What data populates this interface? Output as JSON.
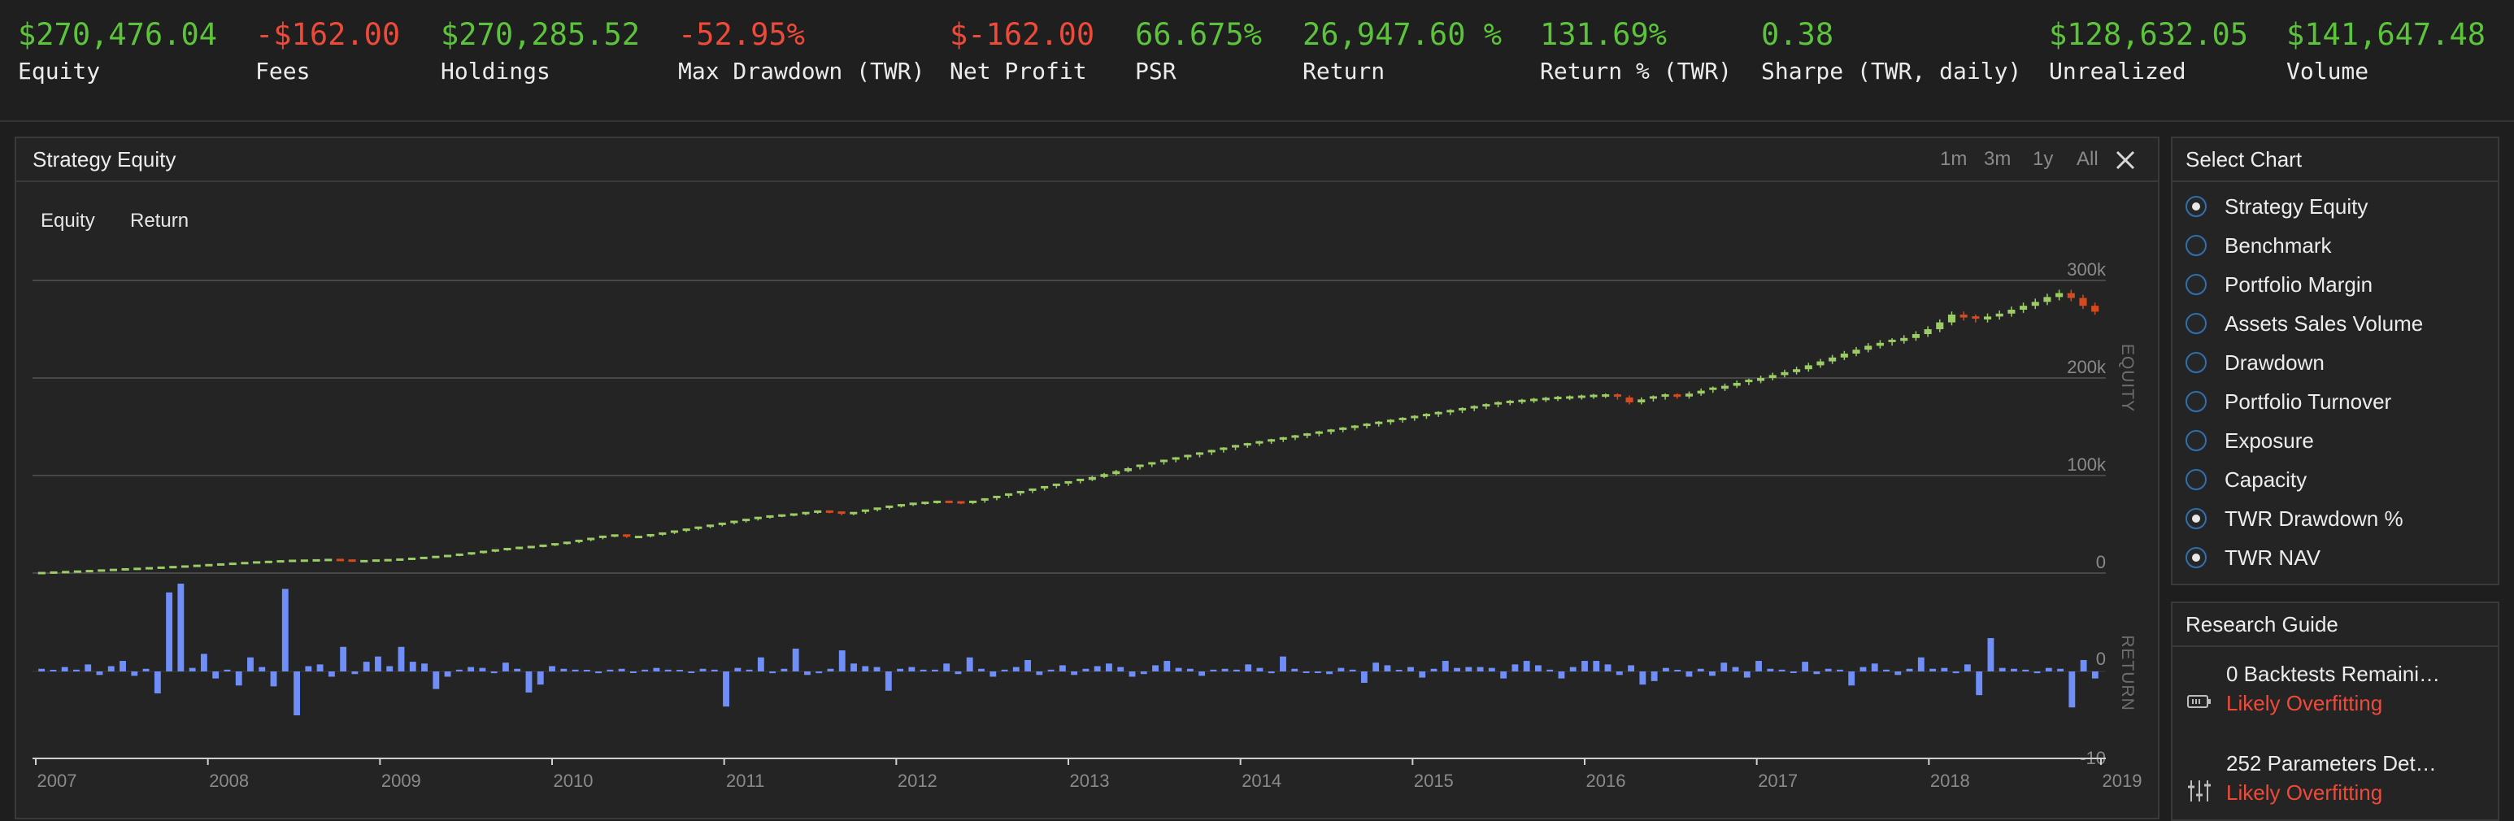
{
  "stats": [
    {
      "value": "$270,476.04",
      "label": "Equity",
      "tone": "pos"
    },
    {
      "value": "-$162.00",
      "label": "Fees",
      "tone": "neg"
    },
    {
      "value": "$270,285.52",
      "label": "Holdings",
      "tone": "pos"
    },
    {
      "value": "-52.95%",
      "label": "Max Drawdown (TWR)",
      "tone": "neg"
    },
    {
      "value": "$-162.00",
      "label": "Net Profit",
      "tone": "neg"
    },
    {
      "value": "66.675%",
      "label": "PSR",
      "tone": "pos"
    },
    {
      "value": "26,947.60 %",
      "label": "Return",
      "tone": "pos"
    },
    {
      "value": "131.69%",
      "label": "Return % (TWR)",
      "tone": "pos"
    },
    {
      "value": "0.38",
      "label": "Sharpe (TWR, daily)",
      "tone": "pos"
    },
    {
      "value": "$128,632.05",
      "label": "Unrealized",
      "tone": "pos"
    },
    {
      "value": "$141,647.48",
      "label": "Volume",
      "tone": "pos"
    }
  ],
  "chart_panel": {
    "title": "Strategy Equity",
    "ranges": [
      "1m",
      "3m",
      "1y",
      "All"
    ],
    "legend": [
      "Equity",
      "Return"
    ],
    "equity_axis_title": "EQUITY",
    "return_axis_title": "RETURN",
    "equity_ticks": [
      "300k",
      "200k",
      "100k",
      "0"
    ],
    "return_ticks": [
      "0",
      "-10"
    ],
    "x_ticks": [
      "2007",
      "2008",
      "2009",
      "2010",
      "2011",
      "2012",
      "2013",
      "2014",
      "2015",
      "2016",
      "2017",
      "2018",
      "2019"
    ]
  },
  "colors": {
    "up": "#9ccc65",
    "down": "#d64a20",
    "bars": "#6f8ef7",
    "positive": "#5cc43b",
    "negative": "#ee4a3a"
  },
  "chart_data": {
    "type": "candlestick+bar",
    "x_start": 2007.0,
    "x_end": 2019.0,
    "equity_ylim": [
      0,
      300000
    ],
    "return_ylim": [
      -10,
      10
    ],
    "equity_monthly_close": [
      0,
      500,
      1000,
      1500,
      2000,
      2600,
      3200,
      3800,
      4300,
      4900,
      5500,
      6100,
      6700,
      7400,
      8100,
      8800,
      9500,
      10200,
      10900,
      11400,
      12000,
      12500,
      12700,
      13000,
      13400,
      12800,
      12000,
      12200,
      12800,
      13200,
      13800,
      14600,
      15500,
      16500,
      17500,
      18800,
      20200,
      21700,
      23200,
      24600,
      25800,
      26700,
      28000,
      29500,
      31000,
      33000,
      35000,
      37200,
      38500,
      36500,
      37000,
      38800,
      40500,
      42500,
      44500,
      46500,
      48500,
      50500,
      52500,
      54500,
      56500,
      58000,
      59000,
      60000,
      61500,
      63000,
      62000,
      60000,
      61500,
      64000,
      66000,
      68000,
      69500,
      71000,
      72000,
      73000,
      72500,
      71500,
      73000,
      75500,
      78000,
      80500,
      83000,
      85500,
      88000,
      90500,
      93000,
      95500,
      98500,
      101500,
      104500,
      107500,
      110000,
      112500,
      115000,
      117500,
      120000,
      122500,
      125000,
      127500,
      130000,
      132000,
      134000,
      136000,
      138000,
      140000,
      142000,
      144000,
      146000,
      148000,
      150000,
      152000,
      154000,
      156000,
      158000,
      160000,
      162000,
      164000,
      166000,
      168000,
      170000,
      172000,
      174000,
      175500,
      176500,
      177500,
      178500,
      179500,
      180000,
      180800,
      181600,
      182000,
      180000,
      175000,
      178000,
      180000,
      182000,
      181000,
      184000,
      187000,
      189000,
      192000,
      195000,
      197000,
      200000,
      203000,
      206000,
      209000,
      213000,
      217000,
      221000,
      225000,
      229000,
      233000,
      236000,
      238000,
      241000,
      245000,
      250000,
      257000,
      265000,
      262000,
      260000,
      263000,
      266000,
      270000,
      274000,
      278000,
      283000,
      287000,
      282000,
      274000,
      268000
    ],
    "return_monthly_pct": [
      0.3,
      0.1,
      0.5,
      0.2,
      0.8,
      -0.4,
      0.6,
      1.2,
      -0.5,
      0.3,
      -2.5,
      9.0,
      10.0,
      0.4,
      2.0,
      -0.8,
      0.2,
      -1.6,
      1.6,
      0.5,
      -1.7,
      9.4,
      -5.0,
      0.6,
      0.8,
      -0.6,
      2.8,
      -0.3,
      1.1,
      1.7,
      0.6,
      2.8,
      1.1,
      0.9,
      -2.0,
      -0.6,
      0.2,
      0.5,
      0.4,
      -0.2,
      1.0,
      0.3,
      -2.4,
      -1.5,
      0.6,
      0.3,
      0.2,
      0.1,
      -0.2,
      0.2,
      0.3,
      -0.1,
      0.2,
      0.4,
      0.2,
      0.1,
      -0.1,
      0.3,
      0.2,
      -4.0,
      0.4,
      0.2,
      1.6,
      -0.2,
      0.3,
      2.6,
      -0.4,
      -0.2,
      0.3,
      2.4,
      0.9,
      0.6,
      0.5,
      -2.2,
      0.3,
      0.5,
      0.2,
      0.2,
      0.9,
      -0.3,
      1.6,
      0.3,
      -0.6,
      0.2,
      0.5,
      1.3,
      -0.4,
      0.2,
      0.7,
      -0.4,
      0.3,
      0.6,
      0.9,
      0.5,
      -0.6,
      -0.3,
      0.7,
      1.2,
      0.4,
      0.3,
      -0.5,
      0.2,
      0.3,
      0.2,
      0.8,
      0.4,
      -0.2,
      1.7,
      0.3,
      -0.1,
      -0.1,
      -0.3,
      0.4,
      0.2,
      -1.3,
      1.0,
      0.7,
      0.1,
      0.5,
      -0.7,
      0.3,
      1.2,
      0.4,
      0.5,
      0.5,
      0.4,
      -0.8,
      0.8,
      1.2,
      0.7,
      0.2,
      -0.8,
      0.5,
      1.2,
      1.2,
      0.8,
      -0.4,
      0.7,
      -1.5,
      -1.1,
      0.4,
      0.1,
      -0.6,
      0.3,
      -0.5,
      1.0,
      0.5,
      -0.7,
      1.2,
      0.3,
      0.2,
      -0.1,
      1.1,
      -0.3,
      0.3,
      0.2,
      -1.6,
      0.5,
      0.9,
      0.2,
      -0.4,
      0.3,
      1.6,
      0.3,
      0.4,
      -0.2,
      0.8,
      -2.7,
      3.8,
      0.4,
      0.3,
      0.2,
      -0.2,
      0.4,
      0.3,
      -4.1,
      1.3,
      -0.8
    ]
  },
  "side_panel": {
    "title": "Select Chart",
    "options": [
      {
        "label": "Strategy Equity",
        "checked": true
      },
      {
        "label": "Benchmark",
        "checked": false
      },
      {
        "label": "Portfolio Margin",
        "checked": false
      },
      {
        "label": "Assets Sales Volume",
        "checked": false
      },
      {
        "label": "Drawdown",
        "checked": false
      },
      {
        "label": "Portfolio Turnover",
        "checked": false
      },
      {
        "label": "Exposure",
        "checked": false
      },
      {
        "label": "Capacity",
        "checked": false
      },
      {
        "label": "TWR Drawdown %",
        "checked": true
      },
      {
        "label": "TWR NAV",
        "checked": true
      }
    ]
  },
  "research_guide": {
    "title": "Research Guide",
    "items": [
      {
        "title": "0 Backtests Remaini…",
        "status": "Likely Overfitting",
        "icon": "battery-icon"
      },
      {
        "title": "252 Parameters Det…",
        "status": "Likely Overfitting",
        "icon": "sliders-icon"
      }
    ]
  }
}
